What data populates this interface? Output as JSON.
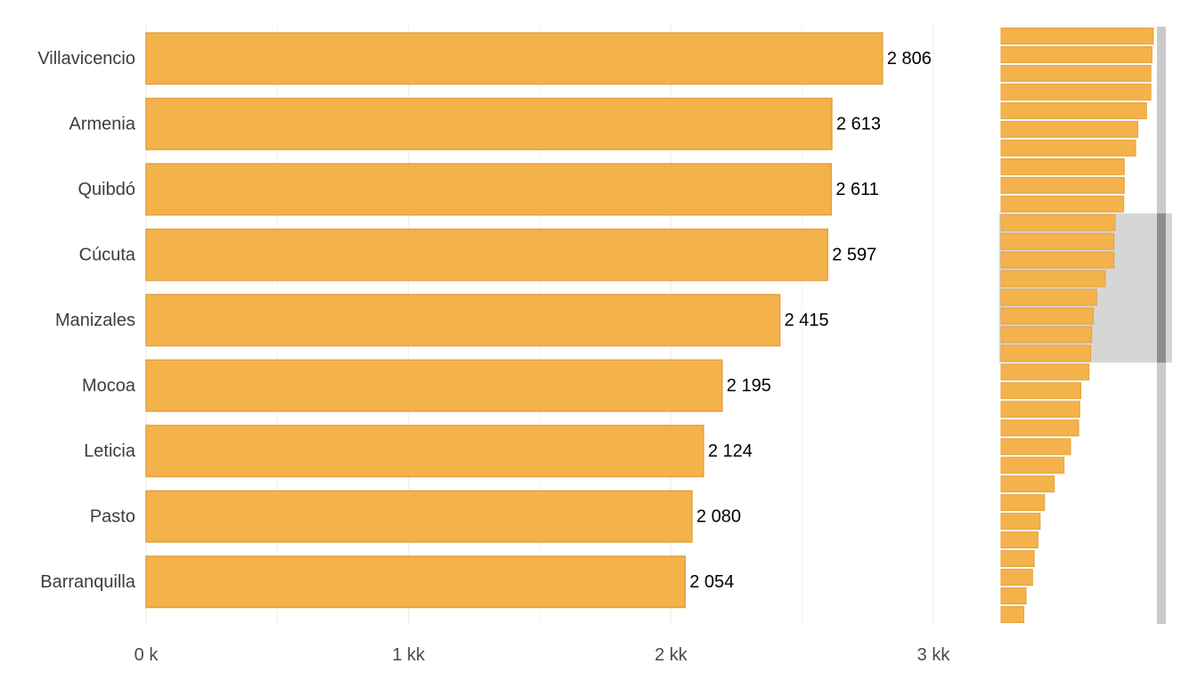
{
  "chart_data": {
    "type": "bar",
    "orientation": "horizontal",
    "categories": [
      "Villavicencio",
      "Armenia",
      "Quibdó",
      "Cúcuta",
      "Manizales",
      "Mocoa",
      "Leticia",
      "Pasto",
      "Barranquilla"
    ],
    "values": [
      2806,
      2613,
      2611,
      2597,
      2415,
      2195,
      2124,
      2080,
      2054
    ],
    "value_labels": [
      "2 806",
      "2 613",
      "2 611",
      "2 597",
      "2 415",
      "2 195",
      "2 124",
      "2 080",
      "2 054"
    ],
    "x_ticks": [
      {
        "value": 0,
        "label": "0 k"
      },
      {
        "value": 1000,
        "label": "1 kk"
      },
      {
        "value": 2000,
        "label": "2 kk"
      },
      {
        "value": 3000,
        "label": "3 kk"
      }
    ],
    "xlim": [
      0,
      3000
    ],
    "grid": true,
    "bar_color": "#f4b24a",
    "bar_border_color": "#e3a13e",
    "title": "",
    "xlabel": "",
    "ylabel": ""
  },
  "overview": {
    "values": [
      2806,
      2780,
      2760,
      2760,
      2680,
      2520,
      2480,
      2270,
      2270,
      2260,
      2100,
      2080,
      2080,
      1920,
      1760,
      1700,
      1670,
      1650,
      1620,
      1470,
      1450,
      1430,
      1280,
      1160,
      980,
      800,
      720,
      680,
      610,
      580,
      460,
      420
    ],
    "visible_range": {
      "start": 10,
      "end": 18
    },
    "bar_color": "#f4b24a",
    "highlight_color": "#d6d6d6",
    "scrollbar_color": "#cacaca",
    "scroll_thumb_color": "#8e8e8e"
  }
}
